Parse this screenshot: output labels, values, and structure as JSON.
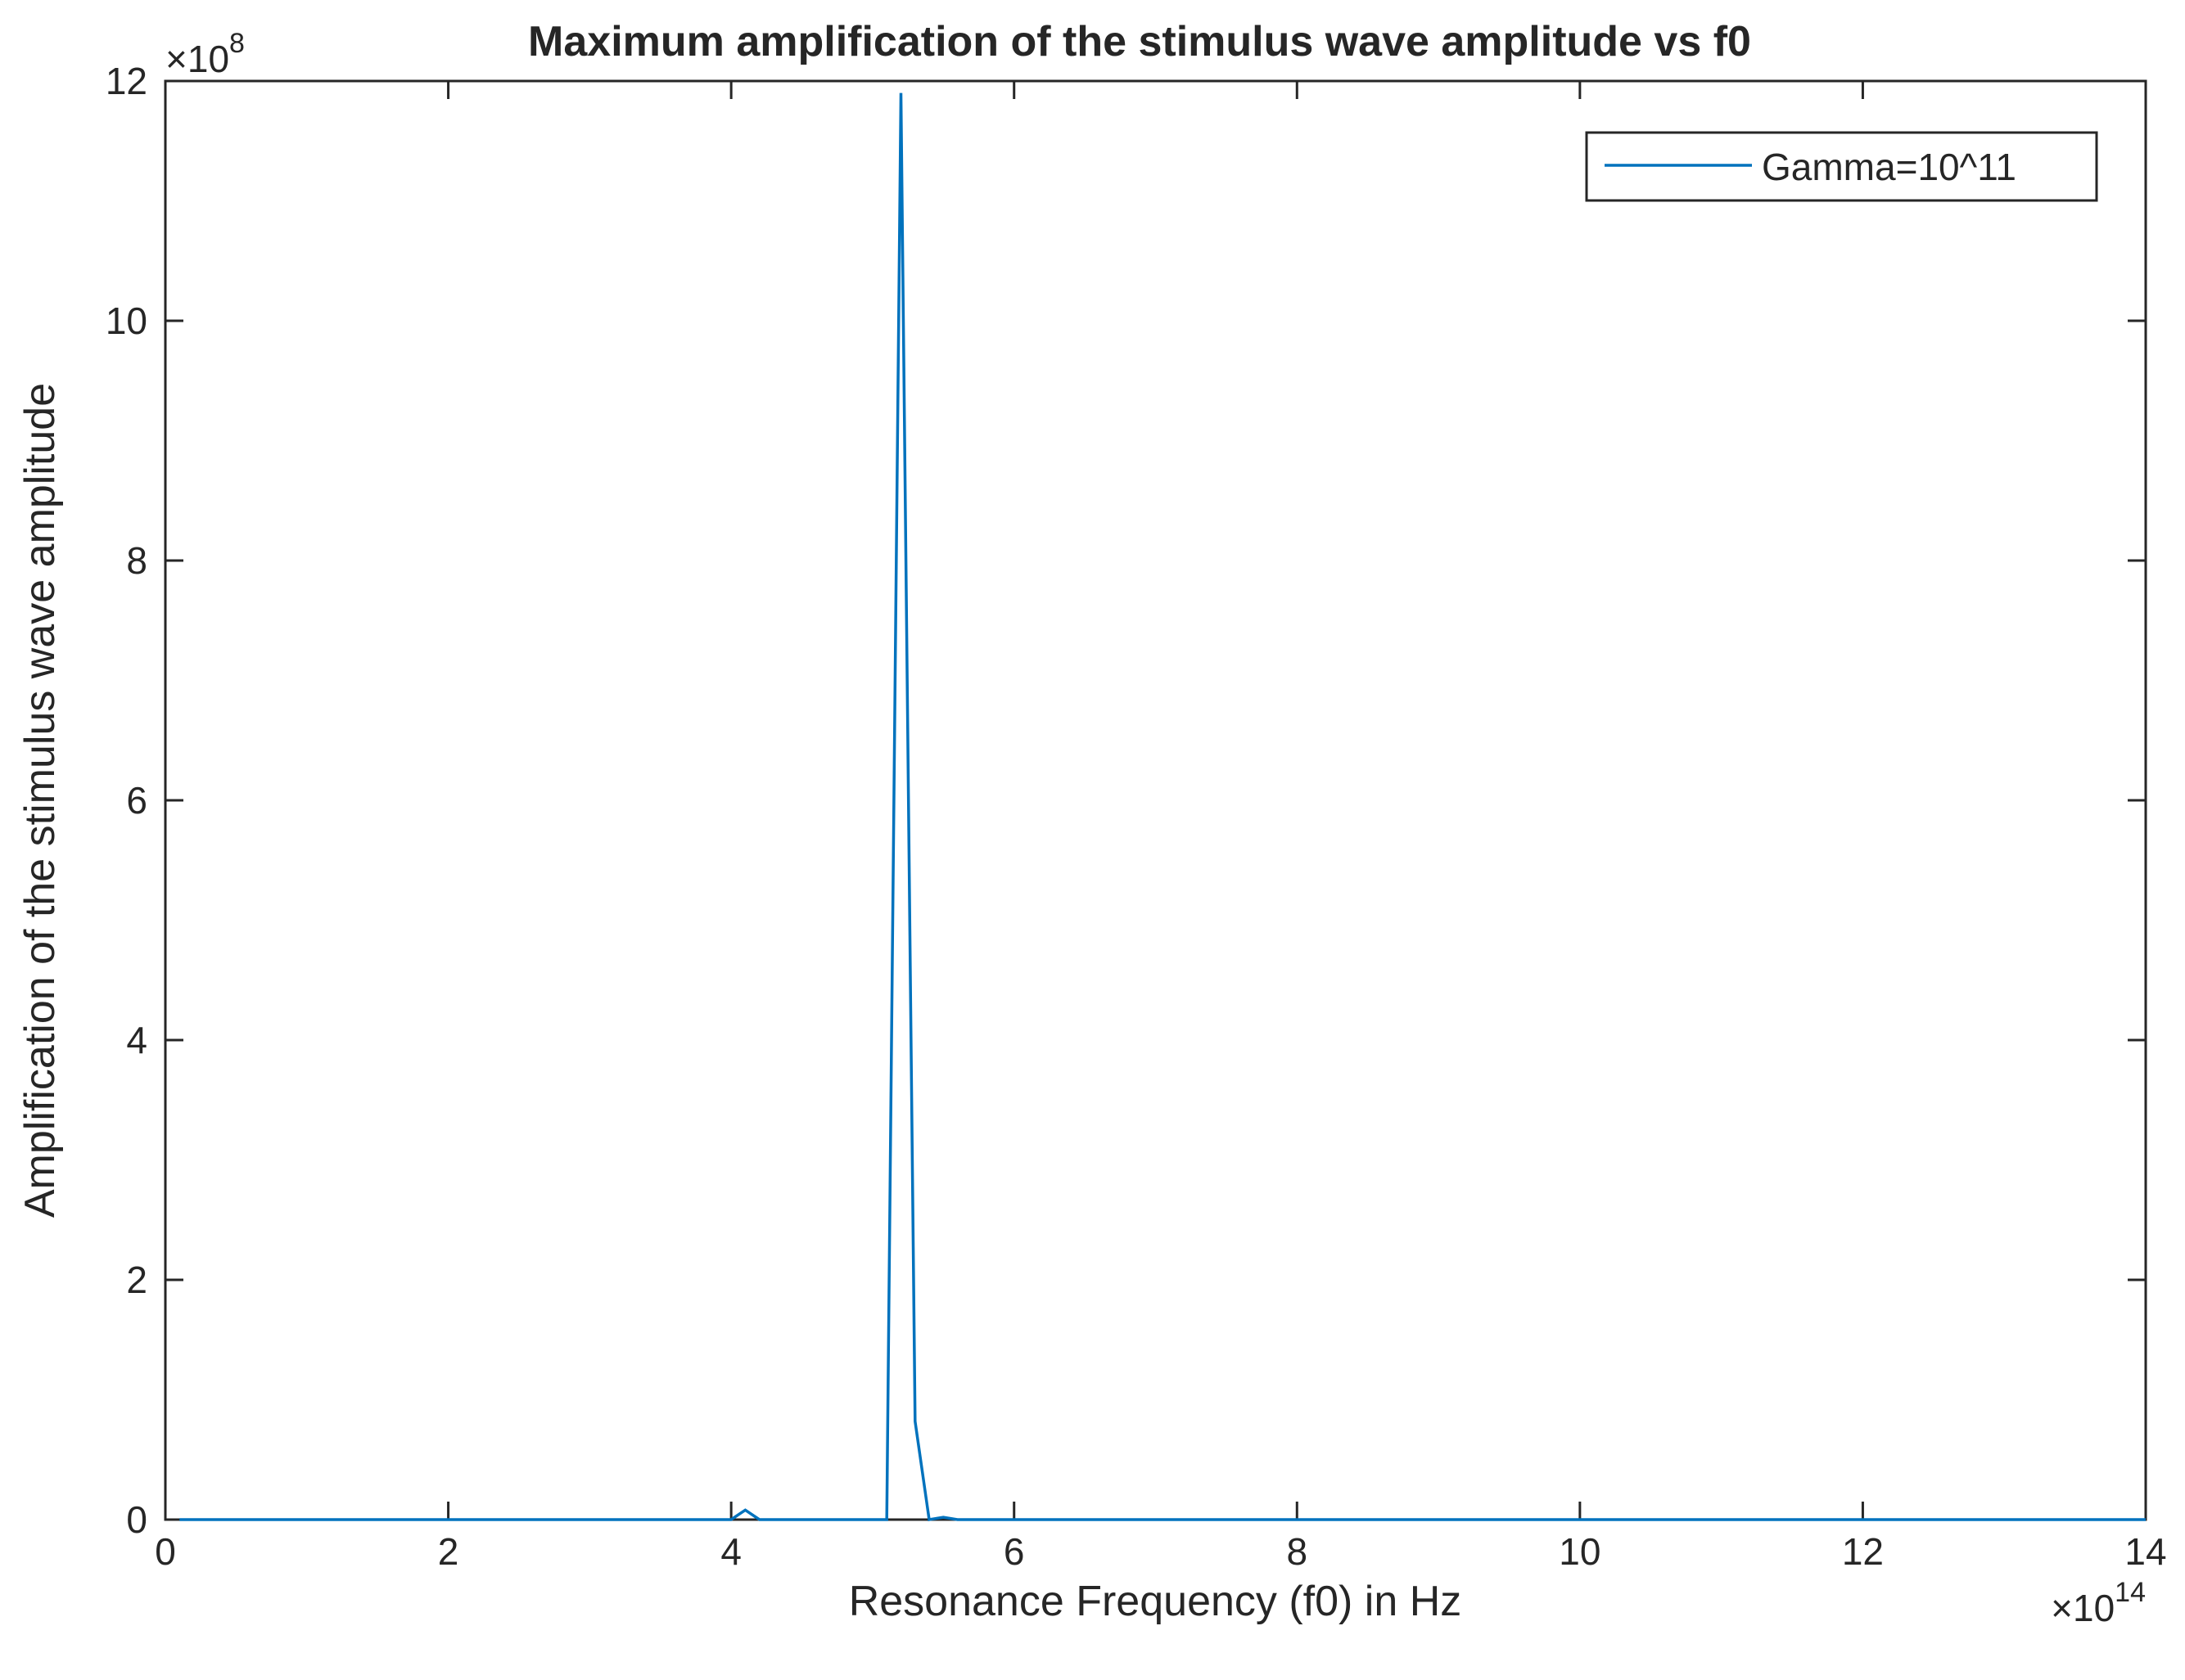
{
  "chart_data": {
    "type": "line",
    "title": "Maximum amplification of the stimulus wave amplitude vs f0",
    "xlabel": "Resonance Frequency (f0) in Hz",
    "ylabel": "Amplification of the stimulus wave amplitude",
    "x_exponent_label": "×10",
    "x_exponent": "14",
    "y_exponent_label": "×10",
    "y_exponent": "8",
    "xlim": [
      0,
      14
    ],
    "ylim": [
      0,
      12
    ],
    "x_scale_factor": 100000000000000.0,
    "y_scale_factor": 100000000.0,
    "x_ticks": [
      0,
      2,
      4,
      6,
      8,
      10,
      12,
      14
    ],
    "y_ticks": [
      0,
      2,
      4,
      6,
      8,
      10,
      12
    ],
    "grid": false,
    "legend_position": "top-right",
    "colors": {
      "series": "#0072BD",
      "axes": "#262626",
      "background": "#ffffff"
    },
    "series": [
      {
        "name": "Gamma=10^11",
        "x": [
          0.1,
          0.5,
          1.0,
          2.0,
          3.0,
          4.0,
          4.05,
          4.1,
          4.2,
          4.5,
          5.0,
          5.1,
          5.2,
          5.3,
          5.4,
          5.5,
          5.6,
          6.0,
          8.0,
          10.0,
          12.0,
          14.0
        ],
        "y": [
          0,
          0,
          0,
          0,
          0,
          0,
          0.04,
          0.08,
          0.0,
          0,
          0,
          0,
          11.9,
          0.82,
          0.0,
          0.02,
          0.0,
          0,
          0,
          0,
          0,
          0
        ]
      }
    ]
  }
}
